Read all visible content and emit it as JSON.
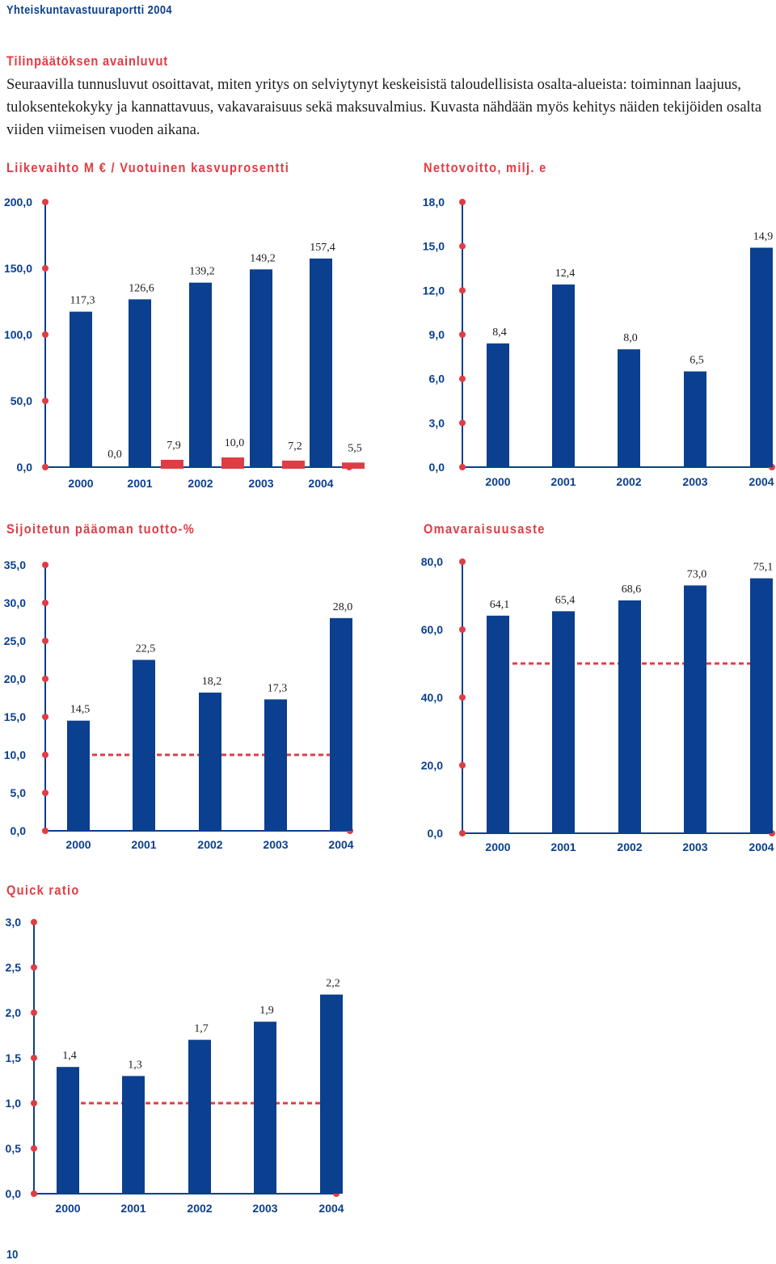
{
  "header": {
    "title": "Yhteiskuntavastuuraportti 2004"
  },
  "intro": {
    "heading": "Tilinpäätöksen avainluvut",
    "text": "Seuraavilla tunnusluvut osoittavat, miten yritys on selviytynyt keskeisistä taloudellisista osalta-alueista: toiminnan laajuus, tuloksentekokyky ja kannattavuus, vakavaraisuus sekä maksuvalmius. Kuvasta nähdään myös kehitys näiden tekijöiden osalta viiden viimeisen vuoden aikana."
  },
  "colors": {
    "bar": "#0b3f8f",
    "accent": "#e03c44",
    "text": "#1c1c1c",
    "tick": "#0b3f8f"
  },
  "page_number": "10",
  "chart_data": [
    {
      "id": "liikevaihto",
      "type": "bar",
      "title": "Liikevaihto M € / Vuotuinen kasvuprosentti",
      "categories": [
        "2000",
        "2001",
        "2002",
        "2003",
        "2004"
      ],
      "series": [
        {
          "name": "Liikevaihto M €",
          "values": [
            117.3,
            126.6,
            139.2,
            149.2,
            157.4
          ],
          "labels": [
            "117,3",
            "126,6",
            "139,2",
            "149,2",
            "157,4"
          ]
        },
        {
          "name": "Vuotuinen kasvuprosentti",
          "values": [
            0.0,
            7.9,
            10.0,
            7.2,
            5.5
          ],
          "labels": [
            "0,0",
            "7,9",
            "10,0",
            "7,2",
            "5,5"
          ]
        }
      ],
      "yticks": [
        "0,0",
        "50,0",
        "100,0",
        "150,0",
        "200,0"
      ],
      "ylim": [
        0,
        200
      ]
    },
    {
      "id": "nettovoitto",
      "type": "bar",
      "title": "Nettovoitto, milj. e",
      "categories": [
        "2000",
        "2001",
        "2002",
        "2003",
        "2004"
      ],
      "values": [
        8.4,
        12.4,
        8.0,
        6.5,
        14.9
      ],
      "labels": [
        "8,4",
        "12,4",
        "8,0",
        "6,5",
        "14,9"
      ],
      "yticks": [
        "0,0",
        "3,0",
        "6,0",
        "9,0",
        "12,0",
        "15,0",
        "18,0"
      ],
      "ylim": [
        0,
        18
      ]
    },
    {
      "id": "sijoitetun",
      "type": "bar",
      "title": "Sijoitetun pääoman tuotto-%",
      "categories": [
        "2000",
        "2001",
        "2002",
        "2003",
        "2004"
      ],
      "values": [
        14.5,
        22.5,
        18.2,
        17.3,
        28.0
      ],
      "labels": [
        "14,5",
        "22,5",
        "18,2",
        "17,3",
        "28,0"
      ],
      "yticks": [
        "0,0",
        "5,0",
        "10,0",
        "15,0",
        "20,0",
        "25,0",
        "30,0",
        "35,0"
      ],
      "ylim": [
        0,
        35
      ],
      "reference_line": 10
    },
    {
      "id": "omavaraisuus",
      "type": "bar",
      "title": "Omavaraisuusaste",
      "categories": [
        "2000",
        "2001",
        "2002",
        "2003",
        "2004"
      ],
      "values": [
        64.1,
        65.4,
        68.6,
        73.0,
        75.1
      ],
      "labels": [
        "64,1",
        "65,4",
        "68,6",
        "73,0",
        "75,1"
      ],
      "yticks": [
        "0,0",
        "20,0",
        "40,0",
        "60,0",
        "80,0"
      ],
      "ylim": [
        0,
        80
      ],
      "reference_line": 50
    },
    {
      "id": "quickratio",
      "type": "bar",
      "title": "Quick ratio",
      "categories": [
        "2000",
        "2001",
        "2002",
        "2003",
        "2004"
      ],
      "values": [
        1.4,
        1.3,
        1.7,
        1.9,
        2.2
      ],
      "labels": [
        "1,4",
        "1,3",
        "1,7",
        "1,9",
        "2,2"
      ],
      "yticks": [
        "0,0",
        "0,5",
        "1,0",
        "1,5",
        "2,0",
        "2,5",
        "3,0"
      ],
      "ylim": [
        0,
        3
      ],
      "reference_line": 1
    }
  ]
}
